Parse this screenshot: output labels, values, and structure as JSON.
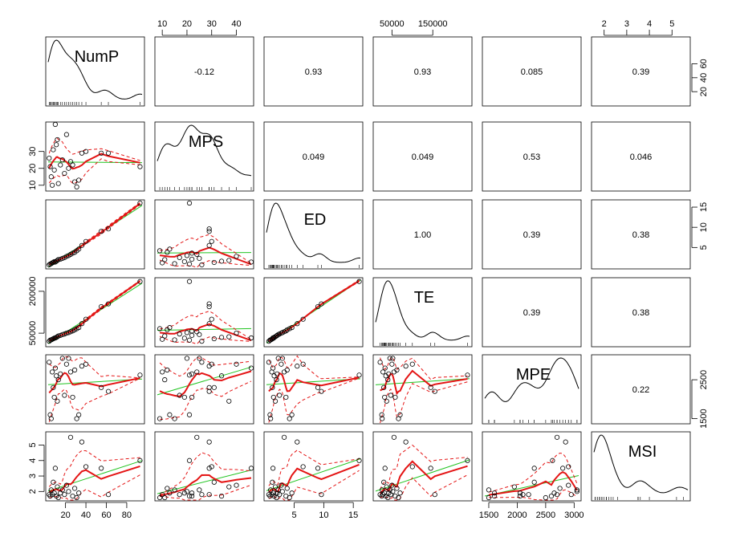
{
  "chart_data": {
    "type": "scatter",
    "subtype": "scatterplot-matrix",
    "variables": [
      "NumP",
      "MPS",
      "ED",
      "TE",
      "MPE",
      "MSI"
    ],
    "ranges": {
      "NumP": [
        3,
        95
      ],
      "MPS": [
        8,
        46
      ],
      "ED": [
        0.3,
        16.2
      ],
      "TE": [
        10000,
        240000
      ],
      "MPE": [
        1430,
        3080
      ],
      "MSI": [
        1.55,
        5.7
      ]
    },
    "ticks": {
      "NumP": [
        20,
        40,
        60,
        80
      ],
      "MPS": [
        10,
        20,
        30,
        40
      ],
      "ED": [
        5,
        10,
        15
      ],
      "TE": [
        50000,
        150000
      ],
      "MPE": [
        1500,
        2000,
        2500,
        3000
      ],
      "MSI": [
        2,
        3,
        4,
        5
      ]
    },
    "tick_labels": {
      "top": [
        {
          "var": "MPS",
          "labels": [
            "10",
            "20",
            "30",
            "40"
          ]
        },
        {
          "var": "TE",
          "labels": [
            "50000",
            "150000"
          ]
        },
        {
          "var": "MSI",
          "labels": [
            "2",
            "3",
            "4",
            "5"
          ]
        }
      ],
      "bottom": [
        {
          "var": "NumP",
          "labels": [
            "20",
            "40",
            "60",
            "80"
          ]
        },
        {
          "var": "ED",
          "labels": [
            "5",
            "10",
            "15"
          ]
        },
        {
          "var": "MPE",
          "labels": [
            "1500",
            "2000",
            "2500",
            "3000"
          ]
        }
      ],
      "left": [
        {
          "var": "MPS",
          "labels": [
            "10",
            "20",
            "30"
          ]
        },
        {
          "var": "TE",
          "labels": [
            "50000",
            "200000"
          ]
        },
        {
          "var": "MSI",
          "labels": [
            "2",
            "3",
            "4",
            "5"
          ]
        }
      ],
      "right": [
        {
          "var": "NumP",
          "labels": [
            "20",
            "40",
            "60"
          ]
        },
        {
          "var": "ED",
          "labels": [
            "5",
            "10",
            "15"
          ]
        },
        {
          "var": "MPE",
          "labels": [
            "1500",
            "2500"
          ]
        }
      ]
    },
    "correlations": [
      [
        "",
        "-0.12",
        "0.93",
        "0.93",
        "0.085",
        "0.39"
      ],
      [
        "",
        "",
        "0.049",
        "0.049",
        "0.53",
        "0.046"
      ],
      [
        "",
        "",
        "",
        "1.00",
        "0.39",
        "0.38"
      ],
      [
        "",
        "",
        "",
        "",
        "0.39",
        "0.38"
      ],
      [
        "",
        "",
        "",
        "",
        "",
        "0.22"
      ],
      [
        "",
        "",
        "",
        "",
        "",
        ""
      ]
    ],
    "observations": [
      {
        "NumP": 4,
        "MPS": 26,
        "ED": 0.7,
        "TE": 21000,
        "MPE": 2950,
        "MSI": 1.8
      },
      {
        "NumP": 5,
        "MPS": 21,
        "ED": 0.9,
        "TE": 25000,
        "MPE": 1600,
        "MSI": 1.7
      },
      {
        "NumP": 6,
        "MPS": 15,
        "ED": 1.0,
        "TE": 26000,
        "MPE": 1500,
        "MSI": 2.1
      },
      {
        "NumP": 7,
        "MPS": 10,
        "ED": 1.2,
        "TE": 28000,
        "MPE": 2700,
        "MSI": 1.8
      },
      {
        "NumP": 8,
        "MPS": 31,
        "ED": 1.3,
        "TE": 30000,
        "MPE": 2300,
        "MSI": 2.6
      },
      {
        "NumP": 9,
        "MPS": 19,
        "ED": 1.5,
        "TE": 32000,
        "MPE": 2050,
        "MSI": 1.9
      },
      {
        "NumP": 10,
        "MPS": 46,
        "ED": 1.4,
        "TE": 33000,
        "MPE": 2800,
        "MSI": 3.5
      },
      {
        "NumP": 11,
        "MPS": 34,
        "ED": 1.6,
        "TE": 35000,
        "MPE": 2600,
        "MSI": 1.7
      },
      {
        "NumP": 12,
        "MPS": 37,
        "ED": 1.8,
        "TE": 37000,
        "MPE": 1950,
        "MSI": 2.3
      },
      {
        "NumP": 13,
        "MPS": 11,
        "ED": 2.0,
        "TE": 40000,
        "MPE": 2500,
        "MSI": 1.6
      },
      {
        "NumP": 15,
        "MPS": 22,
        "ED": 2.1,
        "TE": 42000,
        "MPE": 2650,
        "MSI": 1.9
      },
      {
        "NumP": 17,
        "MPS": 25,
        "ED": 2.3,
        "TE": 45000,
        "MPE": 3050,
        "MSI": 2.1
      },
      {
        "NumP": 19,
        "MPS": 17,
        "ED": 2.5,
        "TE": 47000,
        "MPE": 2100,
        "MSI": 1.8
      },
      {
        "NumP": 21,
        "MPS": 40,
        "ED": 2.8,
        "TE": 50000,
        "MPE": 2900,
        "MSI": 2.4
      },
      {
        "NumP": 23,
        "MPS": 20,
        "ED": 3.0,
        "TE": 52000,
        "MPE": 3050,
        "MSI": 2.0
      },
      {
        "NumP": 25,
        "MPS": 24,
        "ED": 3.3,
        "TE": 55000,
        "MPE": 2700,
        "MSI": 5.5
      },
      {
        "NumP": 27,
        "MPS": 22,
        "ED": 3.6,
        "TE": 58000,
        "MPE": 2050,
        "MSI": 1.7
      },
      {
        "NumP": 29,
        "MPS": 12,
        "ED": 3.8,
        "TE": 62000,
        "MPE": 2750,
        "MSI": 2.2
      },
      {
        "NumP": 31,
        "MPS": 9,
        "ED": 4.2,
        "TE": 66000,
        "MPE": 1500,
        "MSI": 1.6
      },
      {
        "NumP": 33,
        "MPS": 13,
        "ED": 4.6,
        "TE": 70000,
        "MPE": 1600,
        "MSI": 1.9
      },
      {
        "NumP": 36,
        "MPS": 29,
        "ED": 5.5,
        "TE": 84000,
        "MPE": 2850,
        "MSI": 5.2
      },
      {
        "NumP": 40,
        "MPS": 30,
        "ED": 6.5,
        "TE": 100000,
        "MPE": 2900,
        "MSI": 3.6
      },
      {
        "NumP": 55,
        "MPS": 29,
        "ED": 9.0,
        "TE": 145000,
        "MPE": 2300,
        "MSI": 3.5
      },
      {
        "NumP": 62,
        "MPS": 29,
        "ED": 9.6,
        "TE": 155000,
        "MPE": 2200,
        "MSI": 1.8
      },
      {
        "NumP": 93,
        "MPS": 21,
        "ED": 16.0,
        "TE": 235000,
        "MPE": 2620,
        "MSI": 4.0
      }
    ],
    "grid": false,
    "legend": "none",
    "colors": {
      "points": "#000000",
      "linear_fit": "#22c422",
      "smoother": "#e41414",
      "smoother_band": "#e41414"
    }
  }
}
